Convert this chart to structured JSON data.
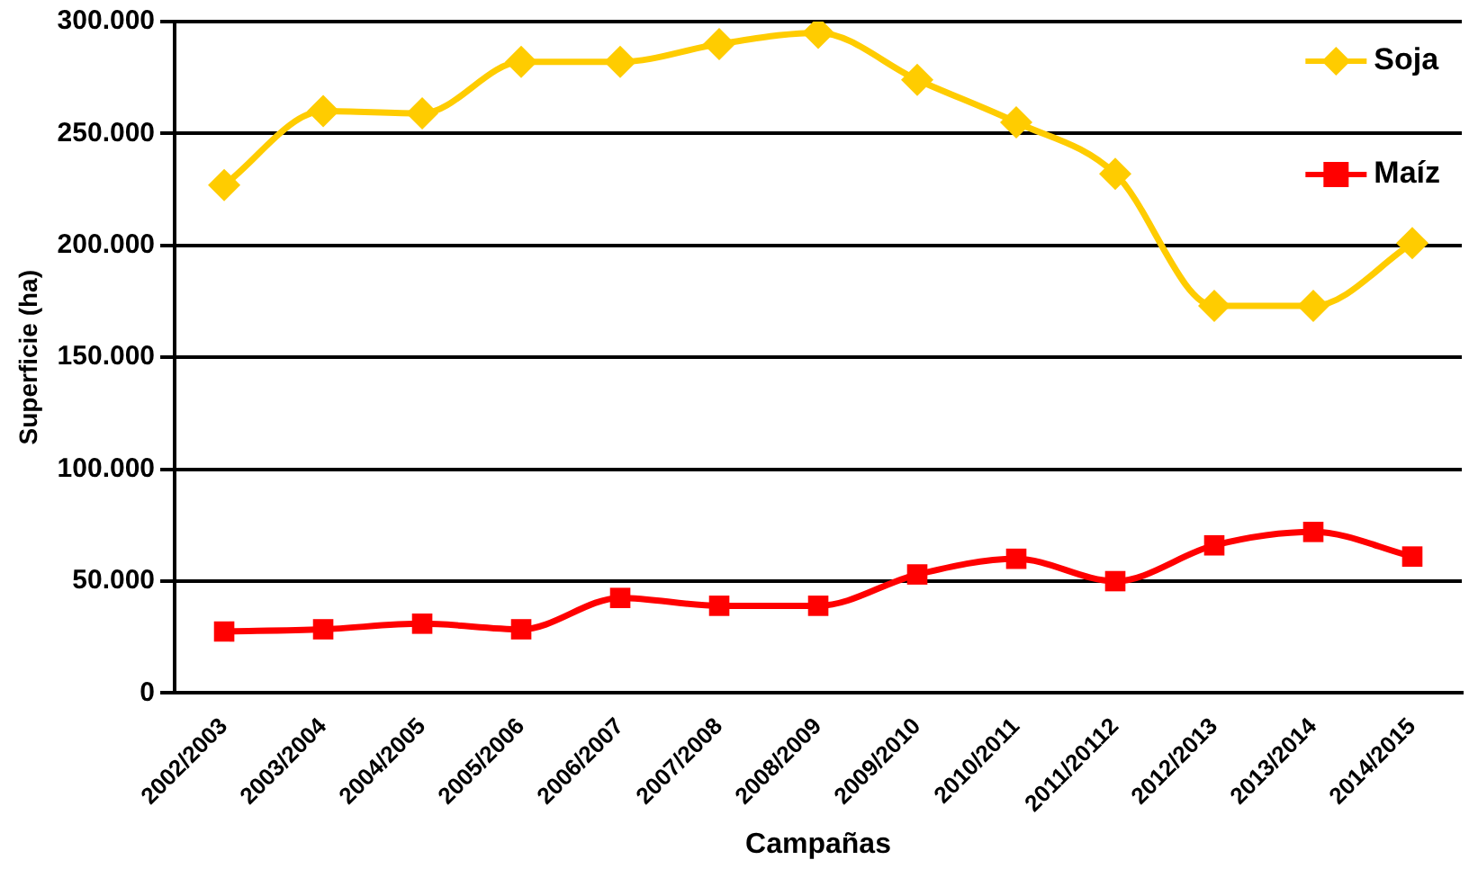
{
  "chart_data": {
    "type": "line",
    "xlabel": "Campañas",
    "ylabel": "Superficie (ha)",
    "categories": [
      "2002/2003",
      "2003/2004",
      "2004/2005",
      "2005/2006",
      "2006/2007",
      "2007/2008",
      "2008/2009",
      "2009/2010",
      "2010/2011",
      "2011/20112",
      "2012/2013",
      "2013/2014",
      "2014/2015"
    ],
    "series": [
      {
        "name": "Soja",
        "color": "#ffcc00",
        "marker": "diamond",
        "values": [
          227000,
          260000,
          259000,
          282000,
          282000,
          290000,
          295000,
          274000,
          255000,
          232000,
          173000,
          173000,
          201000
        ]
      },
      {
        "name": "Maíz",
        "color": "#ff0000",
        "marker": "square",
        "values": [
          27500,
          28500,
          31000,
          28500,
          42500,
          39000,
          39000,
          53000,
          60000,
          50000,
          66000,
          72000,
          61000
        ]
      }
    ],
    "ylim": [
      0,
      300000
    ],
    "yticks": [
      {
        "value": 0,
        "label": "0"
      },
      {
        "value": 50000,
        "label": "50.000"
      },
      {
        "value": 100000,
        "label": "100.000"
      },
      {
        "value": 150000,
        "label": "150.000"
      },
      {
        "value": 200000,
        "label": "200.000"
      },
      {
        "value": 250000,
        "label": "250.000"
      },
      {
        "value": 300000,
        "label": "300.000"
      }
    ],
    "grid": "y",
    "legend": "top right"
  }
}
